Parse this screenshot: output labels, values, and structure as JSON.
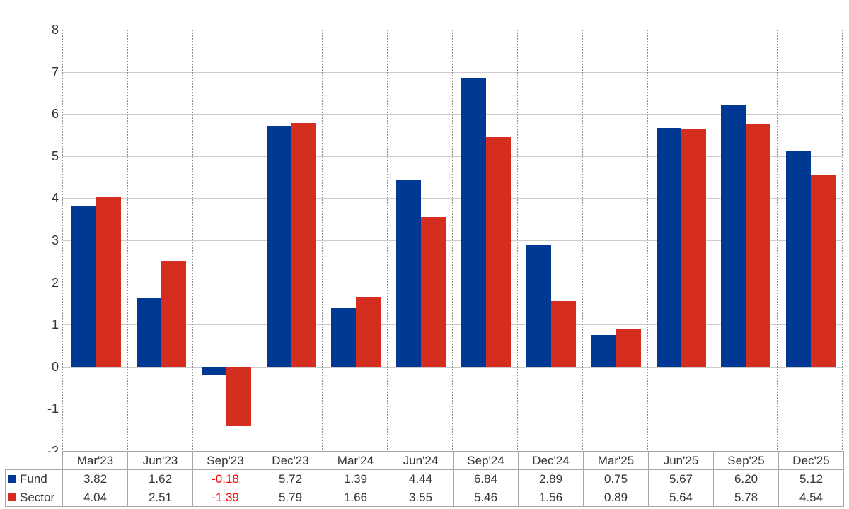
{
  "chart_data": {
    "type": "bar",
    "title": "",
    "xlabel": "",
    "ylabel": "",
    "categories": [
      "Mar'23",
      "Jun'23",
      "Sep'23",
      "Dec'23",
      "Mar'24",
      "Jun'24",
      "Sep'24",
      "Dec'24",
      "Mar'25",
      "Jun'25",
      "Sep'25",
      "Dec'25"
    ],
    "series": [
      {
        "name": "Fund",
        "color": "#003894",
        "values": [
          3.82,
          1.62,
          -0.18,
          5.72,
          1.39,
          4.44,
          6.84,
          2.89,
          0.75,
          5.67,
          6.2,
          5.12
        ]
      },
      {
        "name": "Sector",
        "color": "#d52d20",
        "values": [
          4.04,
          2.51,
          -1.39,
          5.79,
          1.66,
          3.55,
          5.46,
          1.56,
          0.89,
          5.64,
          5.78,
          4.54
        ]
      }
    ],
    "ylim": [
      -2,
      8
    ],
    "ytick_step": 1,
    "ytick_labels": [
      "8",
      "7",
      "6",
      "5",
      "4",
      "3",
      "2",
      "1",
      "0",
      "-1",
      "-2"
    ],
    "grid": true,
    "legend_position": "table-left",
    "value_decimals": 2,
    "colors": {
      "h_gridline": "#cccccc",
      "v_gridline": "#8f8f8f",
      "table_border": "#a6a6a6",
      "text": "#333333",
      "negative_text": "#ff0000",
      "background": "#ffffff"
    }
  }
}
